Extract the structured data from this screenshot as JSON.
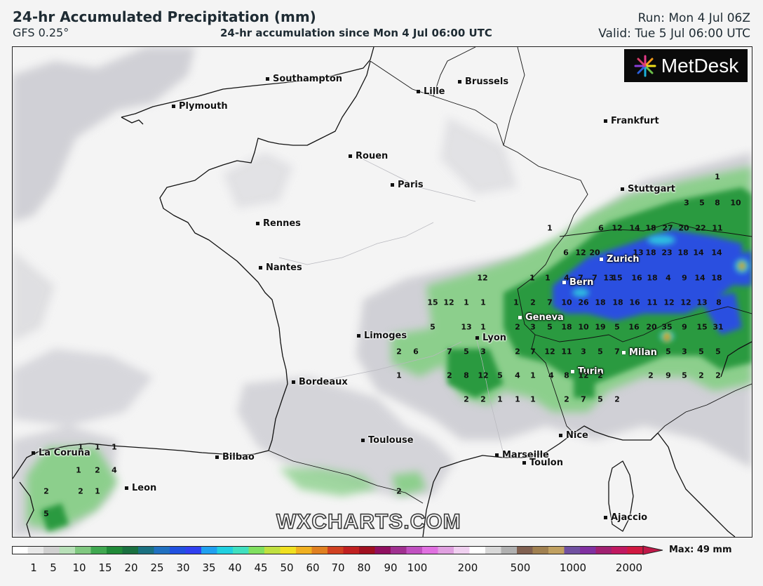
{
  "header": {
    "title": "24-hr Accumulated Precipitation (mm)",
    "model": "GFS 0.25°",
    "subtitle": "24-hr accumulation since Mon 4 Jul 06:00 UTC",
    "run": "Run: Mon 4 Jul 06Z",
    "valid": "Valid: Tue 5 Jul 06:00 UTC"
  },
  "logo": {
    "text": "MetDesk",
    "icon": "metdesk-flower-icon"
  },
  "watermark": "WXCHARTS.COM",
  "cities": [
    {
      "name": "Southampton",
      "style": "dark"
    },
    {
      "name": "Brussels",
      "style": "dark"
    },
    {
      "name": "Lille",
      "style": "dark"
    },
    {
      "name": "Plymouth",
      "style": "dark"
    },
    {
      "name": "Frankfurt",
      "style": "dark"
    },
    {
      "name": "Rouen",
      "style": "dark"
    },
    {
      "name": "Paris",
      "style": "dark"
    },
    {
      "name": "Stuttgart",
      "style": "dark"
    },
    {
      "name": "Rennes",
      "style": "dark"
    },
    {
      "name": "Zurich",
      "style": "white"
    },
    {
      "name": "Nantes",
      "style": "dark"
    },
    {
      "name": "Bern",
      "style": "white"
    },
    {
      "name": "Geneva",
      "style": "white"
    },
    {
      "name": "Limoges",
      "style": "dark"
    },
    {
      "name": "Lyon",
      "style": "dark"
    },
    {
      "name": "Milan",
      "style": "white"
    },
    {
      "name": "Turin",
      "style": "white"
    },
    {
      "name": "Bordeaux",
      "style": "dark"
    },
    {
      "name": "Nice",
      "style": "dark"
    },
    {
      "name": "Toulouse",
      "style": "dark"
    },
    {
      "name": "La Coruna",
      "style": "dark"
    },
    {
      "name": "Marseille",
      "style": "dark"
    },
    {
      "name": "Bilbao",
      "style": "dark"
    },
    {
      "name": "Toulon",
      "style": "dark"
    },
    {
      "name": "Leon",
      "style": "dark"
    },
    {
      "name": "Ajaccio",
      "style": "dark"
    }
  ],
  "precip_values": [
    "1",
    "3",
    "5",
    "8",
    "10",
    "6",
    "12",
    "14",
    "18",
    "27",
    "20",
    "22",
    "11",
    "1",
    "6",
    "12",
    "20",
    "13",
    "18",
    "23",
    "18",
    "14",
    "14",
    "12",
    "1",
    "1",
    "4",
    "7",
    "7",
    "13",
    "15",
    "16",
    "18",
    "4",
    "9",
    "14",
    "18",
    "15",
    "12",
    "1",
    "1",
    "1",
    "2",
    "7",
    "10",
    "26",
    "18",
    "18",
    "16",
    "11",
    "12",
    "12",
    "13",
    "8",
    "5",
    "13",
    "1",
    "2",
    "3",
    "5",
    "18",
    "10",
    "19",
    "5",
    "16",
    "20",
    "35",
    "9",
    "15",
    "31",
    "2",
    "6",
    "7",
    "5",
    "3",
    "2",
    "7",
    "12",
    "11",
    "3",
    "5",
    "7",
    "5",
    "3",
    "5",
    "5",
    "1",
    "2",
    "8",
    "12",
    "5",
    "4",
    "1",
    "4",
    "8",
    "12",
    "2",
    "2",
    "9",
    "5",
    "2",
    "2",
    "2",
    "2",
    "1",
    "1",
    "1",
    "2",
    "7",
    "5",
    "2",
    "1",
    "1",
    "1",
    "1",
    "2",
    "4",
    "2",
    "2",
    "1",
    "2",
    "5"
  ],
  "legend": {
    "ticks": [
      "1",
      "5",
      "10",
      "15",
      "20",
      "25",
      "30",
      "35",
      "40",
      "45",
      "50",
      "60",
      "70",
      "80",
      "90",
      "100",
      "200",
      "500",
      "1000",
      "2000"
    ],
    "max_label": "Max: 49 mm"
  },
  "colors": {
    "background": "#f4f4f4",
    "light_rain": "#d3d3d8",
    "green_dark": "#2a9a40",
    "blue": "#2a4fe0",
    "max_red": "#c81e1e"
  }
}
